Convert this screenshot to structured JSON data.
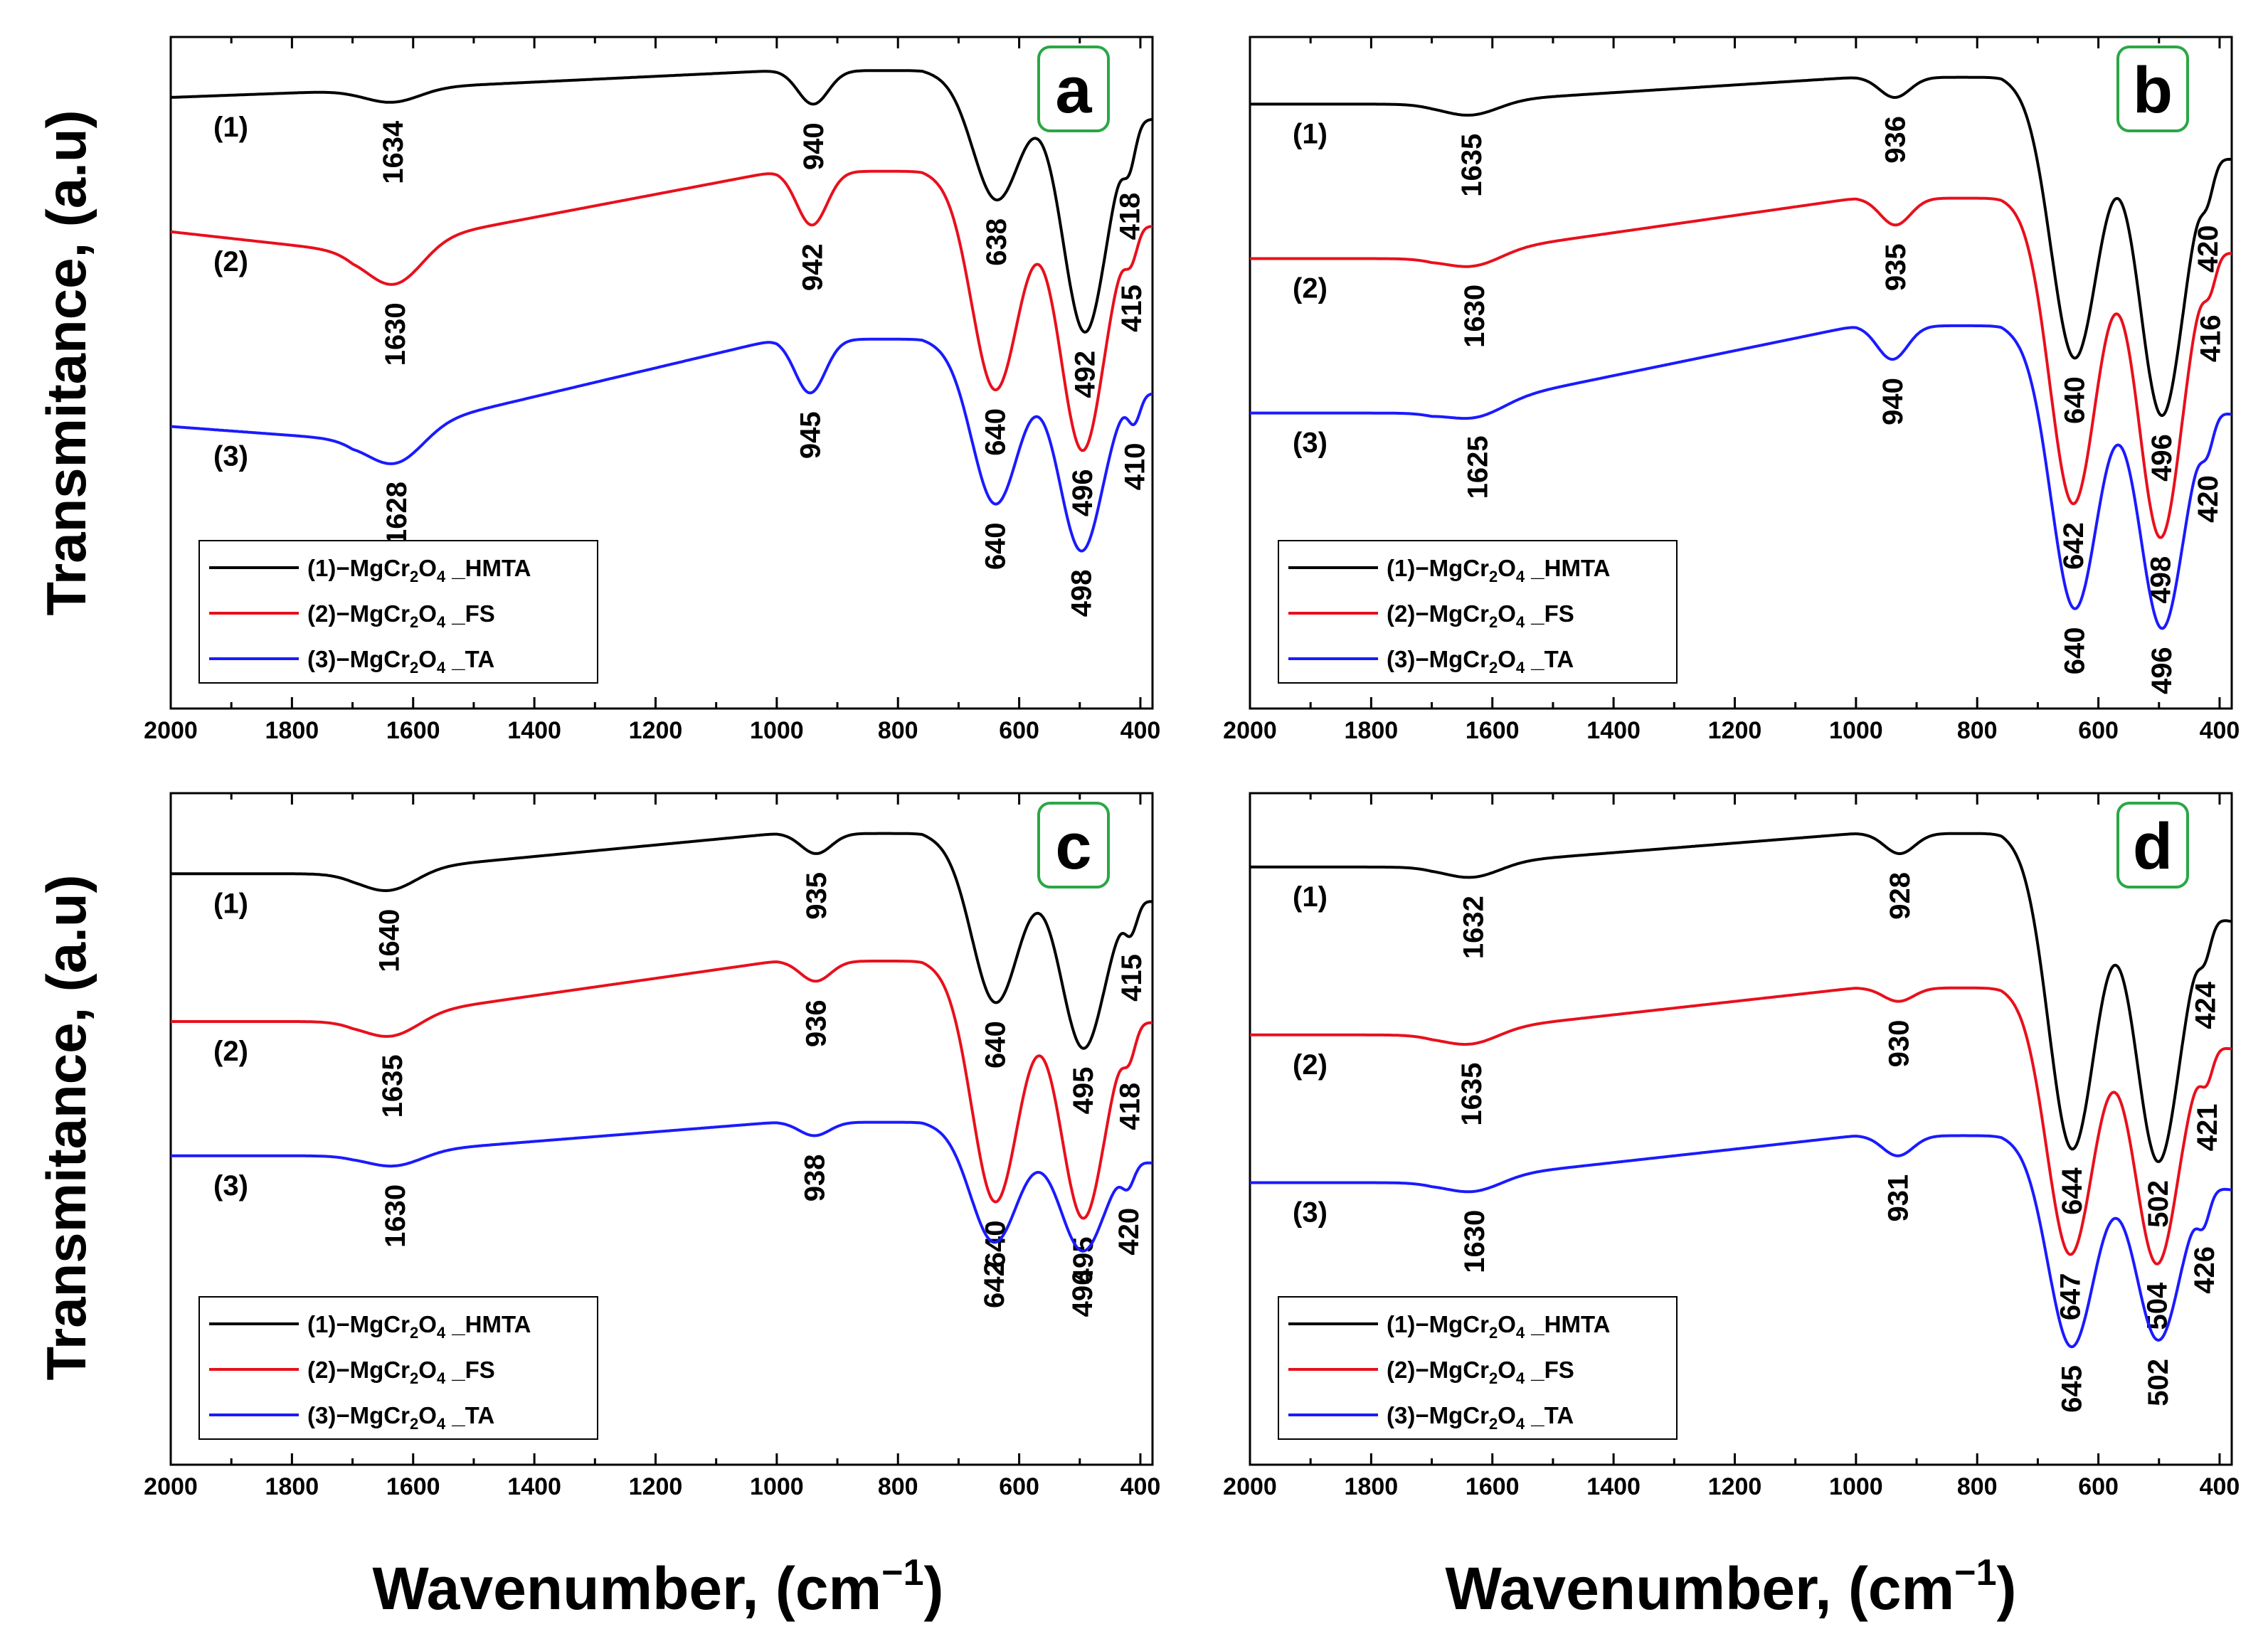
{
  "ylabel": "Transmitance, (a.u)",
  "xlabel": "Wavenumber, (cm",
  "xlabel_sup": "−1",
  "xlabel_close": ")",
  "colors": {
    "s1": "#000000",
    "s2": "#e8101c",
    "s3": "#1a1aff",
    "badge_border": "#2aa745"
  },
  "legend_items": [
    {
      "prefix": "(1)−MgCr",
      "sub1": "2",
      "mid": "O",
      "sub2": "4",
      "suffix": " _HMTA"
    },
    {
      "prefix": "(2)−MgCr",
      "sub1": "2",
      "mid": "O",
      "sub2": "4",
      "suffix": " _FS"
    },
    {
      "prefix": "(3)−MgCr",
      "sub1": "2",
      "mid": "O",
      "sub2": "4",
      "suffix": " _TA"
    }
  ],
  "curve_labels": [
    "(1)",
    "(2)",
    "(3)"
  ],
  "chart_data": [
    {
      "panel": "a",
      "type": "line",
      "xlim": [
        2000,
        380
      ],
      "x_ticks": [
        "2000",
        "1800",
        "1600",
        "1400",
        "1200",
        "1000",
        "800",
        "600",
        "400"
      ],
      "series": [
        {
          "name": "(1)-MgCr2O4_HMTA",
          "baseline": 0.92,
          "start": 0.91,
          "plateau": 0.95,
          "end": 0.88,
          "peaks": [
            [
              1634,
              0.02
            ],
            [
              940,
              0.05
            ],
            [
              638,
              0.17
            ],
            [
              492,
              0.34
            ],
            [
              418,
              0.05
            ]
          ],
          "labels": [
            "1634",
            "940",
            "638",
            "492",
            "418"
          ]
        },
        {
          "name": "(2)-MgCr2O4_FS",
          "baseline": 0.68,
          "start": 0.71,
          "plateau": 0.8,
          "end": 0.72,
          "peaks": [
            [
              1630,
              0.06
            ],
            [
              942,
              0.08
            ],
            [
              640,
              0.3
            ],
            [
              496,
              0.36
            ],
            [
              415,
              0.04
            ]
          ],
          "labels": [
            "1630",
            "942",
            "640",
            "496",
            "415"
          ]
        },
        {
          "name": "(3)-MgCr2O4_TA",
          "baseline": 0.4,
          "start": 0.42,
          "plateau": 0.55,
          "end": 0.47,
          "peaks": [
            [
              1628,
              0.05
            ],
            [
              945,
              0.08
            ],
            [
              640,
              0.22
            ],
            [
              498,
              0.26
            ],
            [
              410,
              0.04
            ]
          ],
          "labels": [
            "1628",
            "945",
            "640",
            "498",
            "410"
          ]
        }
      ]
    },
    {
      "panel": "b",
      "type": "line",
      "xlim": [
        2000,
        380
      ],
      "x_ticks": [
        "2000",
        "1800",
        "1600",
        "1400",
        "1200",
        "1000",
        "800",
        "600",
        "400"
      ],
      "series": [
        {
          "name": "(1)-MgCr2O4_HMTA",
          "baseline": 0.9,
          "start": 0.9,
          "plateau": 0.94,
          "end": 0.82,
          "peaks": [
            [
              1635,
              0.02
            ],
            [
              936,
              0.03
            ],
            [
              640,
              0.38
            ],
            [
              496,
              0.42
            ],
            [
              420,
              0.04
            ]
          ],
          "labels": [
            "1635",
            "936",
            "640",
            "496",
            "420"
          ]
        },
        {
          "name": "(2)-MgCr2O4_FS",
          "baseline": 0.67,
          "start": 0.67,
          "plateau": 0.76,
          "end": 0.68,
          "peaks": [
            [
              1630,
              0.02
            ],
            [
              935,
              0.04
            ],
            [
              642,
              0.43
            ],
            [
              498,
              0.45
            ],
            [
              416,
              0.04
            ]
          ],
          "labels": [
            "1630",
            "935",
            "642",
            "498",
            "416"
          ]
        },
        {
          "name": "(3)-MgCr2O4_TA",
          "baseline": 0.44,
          "start": 0.44,
          "plateau": 0.57,
          "end": 0.44,
          "peaks": [
            [
              1625,
              0.02
            ],
            [
              940,
              0.05
            ],
            [
              640,
              0.38
            ],
            [
              496,
              0.36
            ],
            [
              420,
              0.04
            ]
          ],
          "labels": [
            "1625",
            "940",
            "640",
            "496",
            "420"
          ]
        }
      ]
    },
    {
      "panel": "c",
      "type": "line",
      "xlim": [
        2000,
        380
      ],
      "x_ticks": [
        "2000",
        "1800",
        "1600",
        "1400",
        "1200",
        "1000",
        "800",
        "600",
        "400"
      ],
      "series": [
        {
          "name": "(1)-MgCr2O4_HMTA",
          "baseline": 0.88,
          "start": 0.88,
          "plateau": 0.94,
          "end": 0.84,
          "peaks": [
            [
              1640,
              0.03
            ],
            [
              935,
              0.03
            ],
            [
              640,
              0.22
            ],
            [
              495,
              0.25
            ],
            [
              415,
              0.04
            ]
          ],
          "labels": [
            "1640",
            "935",
            "640",
            "495",
            "415"
          ]
        },
        {
          "name": "(2)-MgCr2O4_FS",
          "baseline": 0.66,
          "start": 0.66,
          "plateau": 0.75,
          "end": 0.66,
          "peaks": [
            [
              1635,
              0.03
            ],
            [
              936,
              0.03
            ],
            [
              640,
              0.33
            ],
            [
              495,
              0.32
            ],
            [
              418,
              0.04
            ]
          ],
          "labels": [
            "1635",
            "936",
            "640",
            "495",
            "418"
          ]
        },
        {
          "name": "(3)-MgCr2O4_TA",
          "baseline": 0.46,
          "start": 0.46,
          "plateau": 0.51,
          "end": 0.45,
          "peaks": [
            [
              1630,
              0.02
            ],
            [
              938,
              0.02
            ],
            [
              642,
              0.16
            ],
            [
              496,
              0.15
            ],
            [
              420,
              0.03
            ]
          ],
          "labels": [
            "1630",
            "938",
            "642",
            "496",
            "420"
          ]
        }
      ]
    },
    {
      "panel": "d",
      "type": "line",
      "xlim": [
        2000,
        380
      ],
      "x_ticks": [
        "2000",
        "1800",
        "1600",
        "1400",
        "1200",
        "1000",
        "800",
        "600",
        "400"
      ],
      "series": [
        {
          "name": "(1)-MgCr2O4_HMTA",
          "baseline": 0.89,
          "start": 0.89,
          "plateau": 0.94,
          "end": 0.81,
          "peaks": [
            [
              1632,
              0.02
            ],
            [
              928,
              0.03
            ],
            [
              644,
              0.43
            ],
            [
              502,
              0.4
            ],
            [
              424,
              0.04
            ]
          ],
          "labels": [
            "1632",
            "928",
            "644",
            "502",
            "424"
          ]
        },
        {
          "name": "(2)-MgCr2O4_FS",
          "baseline": 0.64,
          "start": 0.64,
          "plateau": 0.71,
          "end": 0.62,
          "peaks": [
            [
              1635,
              0.02
            ],
            [
              930,
              0.02
            ],
            [
              647,
              0.37
            ],
            [
              504,
              0.35
            ],
            [
              421,
              0.04
            ]
          ],
          "labels": [
            "1635",
            "930",
            "647",
            "504",
            "421"
          ]
        },
        {
          "name": "(3)-MgCr2O4_TA",
          "baseline": 0.42,
          "start": 0.42,
          "plateau": 0.49,
          "end": 0.41,
          "peaks": [
            [
              1630,
              0.02
            ],
            [
              931,
              0.03
            ],
            [
              645,
              0.29
            ],
            [
              502,
              0.25
            ],
            [
              426,
              0.04
            ]
          ],
          "labels": [
            "1630",
            "931",
            "645",
            "502",
            "426"
          ]
        }
      ]
    }
  ]
}
